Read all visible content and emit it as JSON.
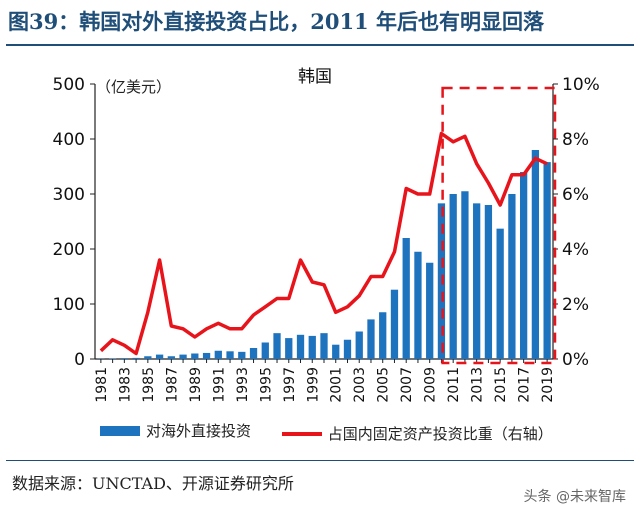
{
  "header": {
    "title": "图39：韩国对外直接投资占比，2011 年后也有明显回落"
  },
  "footer": {
    "source": "数据来源：UNCTAD、开源证券研究所",
    "watermark": "头条 @未来智库"
  },
  "colors": {
    "bar": "#1e73be",
    "line": "#e8141b",
    "highlight_box": "#e8141b",
    "title": "#1f4e79"
  },
  "chart_data": {
    "type": "bar",
    "title": "韩国",
    "ylabel": "（亿美元）",
    "ylim": [
      0,
      500
    ],
    "yticks": [
      "0",
      "100",
      "200",
      "300",
      "400",
      "500"
    ],
    "y2lim": [
      0,
      10
    ],
    "y2ticks": [
      "0%",
      "2%",
      "4%",
      "6%",
      "8%",
      "10%"
    ],
    "x": [
      "1981",
      "1982",
      "1983",
      "1984",
      "1985",
      "1986",
      "1987",
      "1988",
      "1989",
      "1990",
      "1991",
      "1992",
      "1993",
      "1994",
      "1995",
      "1996",
      "1997",
      "1998",
      "1999",
      "2000",
      "2001",
      "2002",
      "2003",
      "2004",
      "2005",
      "2006",
      "2007",
      "2008",
      "2009",
      "2010",
      "2011",
      "2012",
      "2013",
      "2014",
      "2015",
      "2016",
      "2017",
      "2018",
      "2019"
    ],
    "xticks": [
      "1981",
      "1983",
      "1985",
      "1987",
      "1989",
      "1991",
      "1993",
      "1995",
      "1997",
      "1999",
      "2001",
      "2003",
      "2005",
      "2007",
      "2009",
      "2011",
      "2013",
      "2015",
      "2017",
      "2019"
    ],
    "series": [
      {
        "name": "对海外直接投资",
        "type": "bar",
        "axis": "left",
        "values": [
          0.5,
          1,
          1.5,
          2,
          5,
          8,
          5,
          8,
          10,
          11,
          15,
          14,
          13,
          20,
          30,
          47,
          38,
          44,
          42,
          47,
          26,
          35,
          50,
          72,
          85,
          126,
          220,
          195,
          175,
          283,
          300,
          305,
          283,
          280,
          237,
          300,
          340,
          380,
          358
        ]
      },
      {
        "name": "占国内固定资产投资比重（右轴）",
        "type": "line",
        "axis": "right",
        "values": [
          0.3,
          0.7,
          0.5,
          0.2,
          1.7,
          3.6,
          1.2,
          1.1,
          0.8,
          1.1,
          1.3,
          1.1,
          1.1,
          1.6,
          1.9,
          2.2,
          2.2,
          3.6,
          2.8,
          2.7,
          1.7,
          1.9,
          2.3,
          3.0,
          3.0,
          3.9,
          6.2,
          6.0,
          6.0,
          8.2,
          7.9,
          8.1,
          7.1,
          6.4,
          5.6,
          6.7,
          6.7,
          7.3,
          7.1
        ]
      }
    ],
    "highlight_range": [
      "2011",
      "2019"
    ],
    "legend_position": "bottom"
  }
}
